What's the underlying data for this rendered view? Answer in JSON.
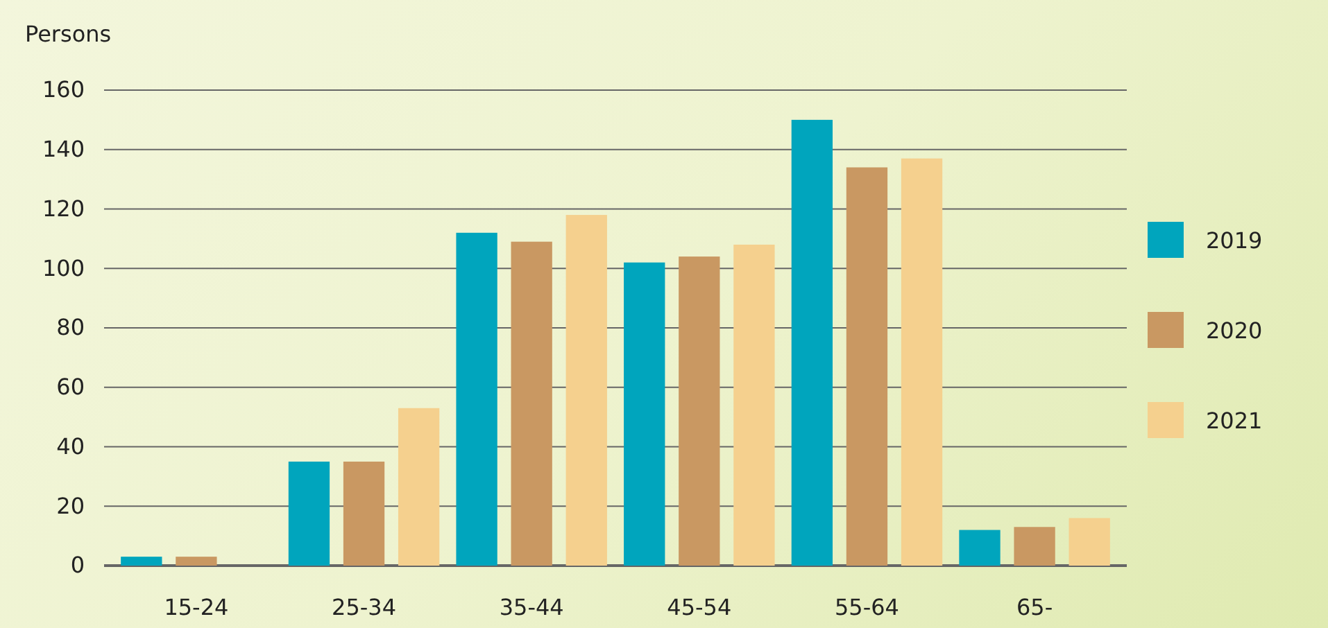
{
  "chart_data": {
    "type": "bar",
    "ylabel": "Persons",
    "categories": [
      "15-24",
      "25-34",
      "35-44",
      "45-54",
      "55-64",
      "65-"
    ],
    "series": [
      {
        "name": "2019",
        "color": "#00a5bd",
        "values": [
          3,
          35,
          112,
          102,
          150,
          12
        ]
      },
      {
        "name": "2020",
        "color": "#c99862",
        "values": [
          3,
          35,
          109,
          104,
          134,
          13
        ]
      },
      {
        "name": "2021",
        "color": "#f5d08e",
        "values": [
          0,
          53,
          118,
          108,
          137,
          16
        ]
      }
    ],
    "ylim": [
      0,
      160
    ],
    "yticks": [
      0,
      20,
      40,
      60,
      80,
      100,
      120,
      140,
      160
    ],
    "grid": "y",
    "legend": "right"
  }
}
